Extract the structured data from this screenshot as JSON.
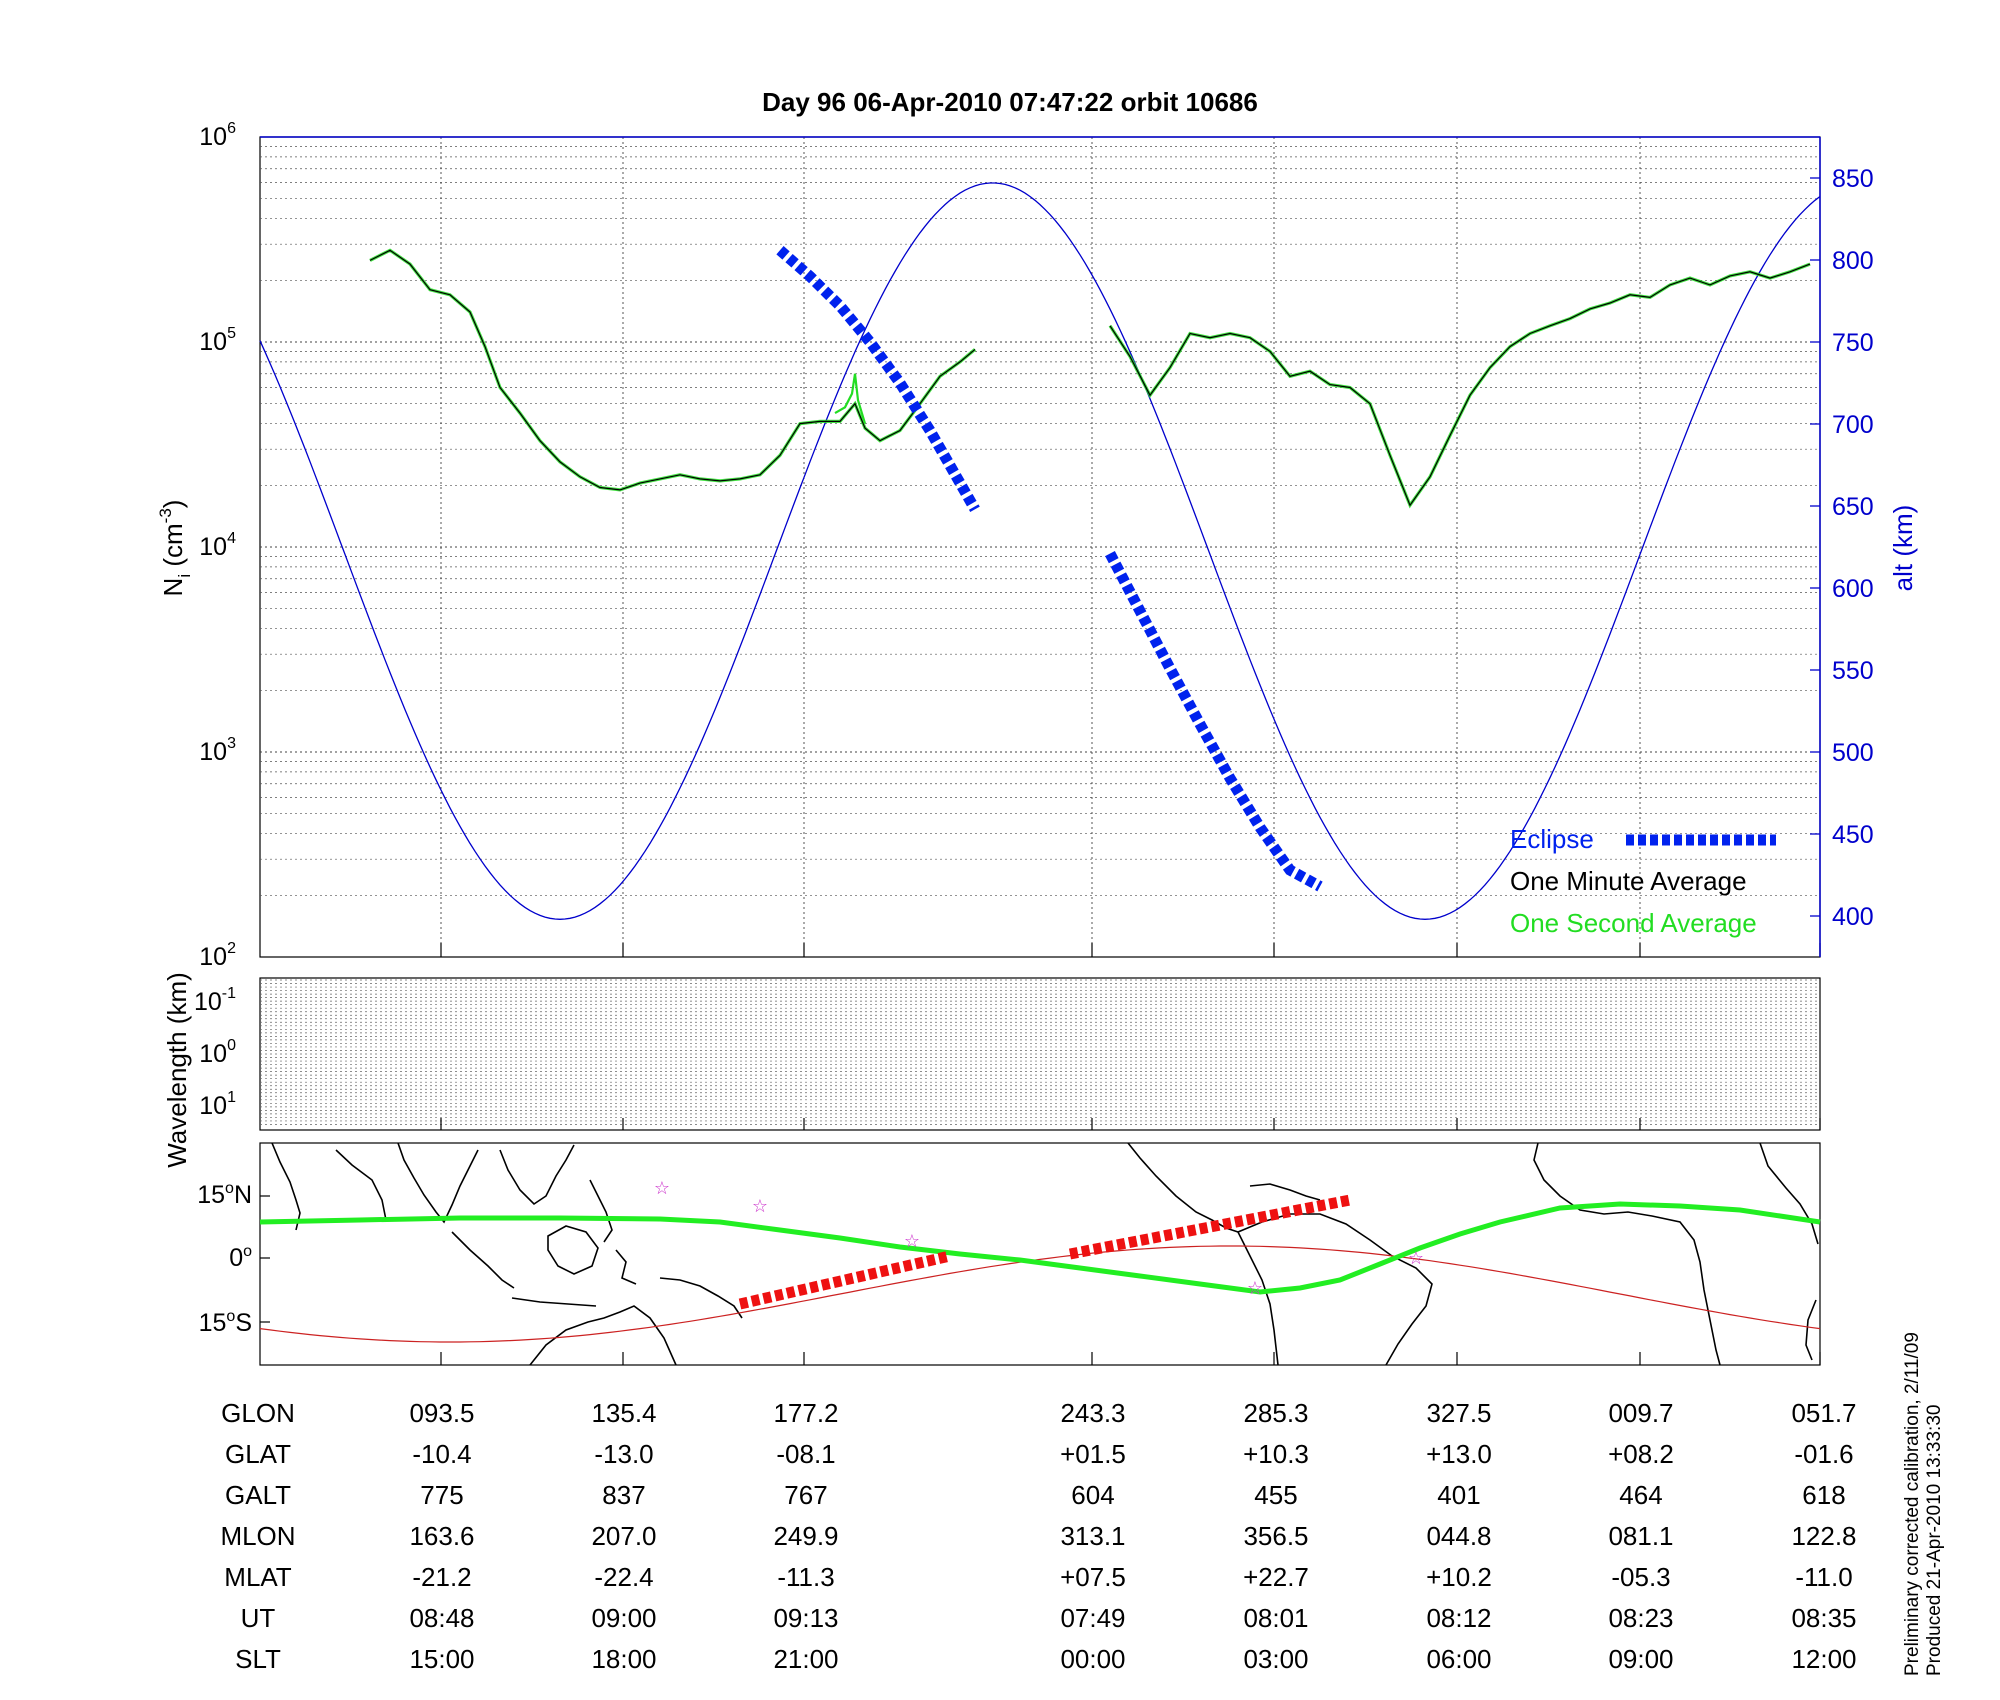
{
  "title": "Day 96  06-Apr-2010 07:47:22   orbit 10686",
  "panels": {
    "density": {
      "ylabel_main": "N",
      "ylabel_sub": "i",
      "ylabel_unit": "(cm",
      "ylabel_exp": "-3",
      "ylabel_close": ")",
      "yticks_left": [
        {
          "base": "10",
          "exp": "6",
          "value": 1000000
        },
        {
          "base": "10",
          "exp": "5",
          "value": 100000
        },
        {
          "base": "10",
          "exp": "4",
          "value": 10000
        },
        {
          "base": "10",
          "exp": "3",
          "value": 1000
        },
        {
          "base": "10",
          "exp": "2",
          "value": 100
        }
      ],
      "ylabel_right": "alt (km)",
      "yticks_right": [
        "850",
        "800",
        "750",
        "700",
        "650",
        "600",
        "550",
        "500",
        "450",
        "400"
      ]
    },
    "wavelength": {
      "ylabel": "Wavelength (km)",
      "yticks": [
        {
          "base": "10",
          "exp": "-1"
        },
        {
          "base": "10",
          "exp": "0"
        },
        {
          "base": "10",
          "exp": "1"
        }
      ]
    },
    "map": {
      "yticks": [
        {
          "num": "15",
          "deg": "o",
          "hemi": "N"
        },
        {
          "num": "0",
          "deg": "o",
          "hemi": ""
        },
        {
          "num": "15",
          "deg": "o",
          "hemi": "S"
        }
      ]
    }
  },
  "legend": {
    "eclipse": "Eclipse",
    "one_minute": "One Minute Average",
    "one_second": "One Second Average",
    "placement": "lower-right"
  },
  "side_note": {
    "line1": "Preliminary corrected calibration, 2/11/09",
    "line2": "Produced 21-Apr-2010 13:33:30"
  },
  "colors": {
    "altitude": "#0000cc",
    "eclipse": "#0022ee",
    "one_minute": "#000000",
    "one_second": "#22dd22",
    "ground_track": "#22ee22",
    "magnetic_equator": "#cc2222",
    "eclipse_track": "#ee1111",
    "stars": "#cc33cc"
  },
  "table": {
    "rows": [
      {
        "label": "GLON",
        "values": [
          "093.5",
          "135.4",
          "177.2",
          "243.3",
          "285.3",
          "327.5",
          "009.7",
          "051.7"
        ]
      },
      {
        "label": "GLAT",
        "values": [
          "-10.4",
          "-13.0",
          "-08.1",
          "+01.5",
          "+10.3",
          "+13.0",
          "+08.2",
          "-01.6"
        ]
      },
      {
        "label": "GALT",
        "values": [
          "775",
          "837",
          "767",
          "604",
          "455",
          "401",
          "464",
          "618"
        ]
      },
      {
        "label": "MLON",
        "values": [
          "163.6",
          "207.0",
          "249.9",
          "313.1",
          "356.5",
          "044.8",
          "081.1",
          "122.8"
        ]
      },
      {
        "label": "MLAT",
        "values": [
          "-21.2",
          "-22.4",
          "-11.3",
          "+07.5",
          "+22.7",
          "+10.2",
          "-05.3",
          "-11.0"
        ]
      },
      {
        "label": "UT",
        "values": [
          "08:48",
          "09:00",
          "09:13",
          "07:49",
          "08:01",
          "08:12",
          "08:23",
          "08:35"
        ]
      },
      {
        "label": "SLT",
        "values": [
          "15:00",
          "18:00",
          "21:00",
          "00:00",
          "03:00",
          "06:00",
          "09:00",
          "12:00"
        ]
      }
    ]
  },
  "chart_data": {
    "type": "line",
    "title": "Day 96  06-Apr-2010 07:47:22   orbit 10686",
    "x_ticks_ut": [
      "08:48",
      "09:00",
      "09:13",
      "07:49",
      "08:01",
      "08:12",
      "08:23",
      "08:35"
    ],
    "x_ticks_slt": [
      "15:00",
      "18:00",
      "21:00",
      "00:00",
      "03:00",
      "06:00",
      "09:00",
      "12:00"
    ],
    "ylim_left_log": [
      100,
      1000000
    ],
    "ylim_right": [
      375,
      875
    ],
    "grid": true,
    "series": [
      {
        "name": "One Minute Average",
        "axis": "left",
        "segments": [
          [
            [
              11.0,
              250000
            ],
            [
              13.0,
              280000
            ],
            [
              15.0,
              240000
            ],
            [
              17.0,
              180000
            ],
            [
              19.0,
              170000
            ],
            [
              21.0,
              140000
            ],
            [
              22.5,
              95000
            ],
            [
              24.0,
              60000
            ],
            [
              26.0,
              45000
            ],
            [
              28.0,
              33000
            ],
            [
              30.0,
              26000
            ],
            [
              32.0,
              22000
            ],
            [
              34.0,
              19500
            ],
            [
              36.0,
              19000
            ],
            [
              38.0,
              20500
            ],
            [
              40.0,
              21500
            ],
            [
              42.0,
              22500
            ],
            [
              44.0,
              21500
            ],
            [
              46.0,
              21000
            ],
            [
              48.0,
              21500
            ],
            [
              50.0,
              22500
            ],
            [
              52.0,
              28000
            ],
            [
              54.0,
              40000
            ],
            [
              56.0,
              41000
            ],
            [
              58.0,
              41000
            ],
            [
              59.5,
              50000
            ],
            [
              60.5,
              38000
            ],
            [
              62.0,
              33000
            ],
            [
              64.0,
              37000
            ],
            [
              66.0,
              50000
            ],
            [
              68.0,
              68000
            ],
            [
              70.0,
              80000
            ],
            [
              71.5,
              92000
            ]
          ],
          [
            [
              85.0,
              120000
            ],
            [
              87.0,
              85000
            ],
            [
              89.0,
              55000
            ],
            [
              91.0,
              75000
            ],
            [
              93.0,
              110000
            ],
            [
              95.0,
              105000
            ],
            [
              97.0,
              110000
            ],
            [
              99.0,
              105000
            ],
            [
              101.0,
              90000
            ],
            [
              103.0,
              68000
            ],
            [
              105.0,
              72000
            ],
            [
              107.0,
              62000
            ],
            [
              109.0,
              60000
            ],
            [
              111.0,
              50000
            ],
            [
              113.0,
              28000
            ],
            [
              115.0,
              16000
            ],
            [
              117.0,
              22000
            ],
            [
              119.0,
              35000
            ],
            [
              121.0,
              55000
            ],
            [
              123.0,
              75000
            ],
            [
              125.0,
              95000
            ],
            [
              127.0,
              110000
            ],
            [
              129.0,
              120000
            ],
            [
              131.0,
              130000
            ],
            [
              133.0,
              145000
            ],
            [
              135.0,
              155000
            ],
            [
              137.0,
              170000
            ],
            [
              139.0,
              165000
            ],
            [
              141.0,
              190000
            ],
            [
              143.0,
              205000
            ],
            [
              145.0,
              190000
            ],
            [
              147.0,
              210000
            ],
            [
              149.0,
              220000
            ],
            [
              151.0,
              205000
            ],
            [
              153.0,
              220000
            ],
            [
              155.0,
              240000
            ]
          ]
        ]
      },
      {
        "name": "One Second Average",
        "axis": "left",
        "note": "overlaps One Minute Average; visible spike near x=59.5",
        "segments": [
          [
            [
              57.5,
              45000
            ],
            [
              58.5,
              48000
            ],
            [
              59.2,
              56000
            ],
            [
              59.5,
              70000
            ],
            [
              59.8,
              52000
            ],
            [
              60.5,
              40000
            ]
          ]
        ]
      },
      {
        "name": "Eclipse",
        "axis": "right",
        "segments": [
          [
            [
              52.0,
              806
            ],
            [
              55.0,
              790
            ],
            [
              58.0,
              772
            ],
            [
              61.0,
              750
            ],
            [
              64.0,
              725
            ],
            [
              67.0,
              696
            ],
            [
              70.0,
              664
            ],
            [
              71.5,
              648
            ]
          ],
          [
            [
              85.0,
              621
            ],
            [
              88.0,
              586
            ],
            [
              91.0,
              551
            ],
            [
              94.0,
              517
            ],
            [
              97.0,
              484
            ],
            [
              100.0,
              454
            ],
            [
              103.0,
              428
            ],
            [
              106.0,
              418
            ]
          ]
        ]
      },
      {
        "name": "alt (km)",
        "axis": "right",
        "orbit": {
          "period": 86.5,
          "x_min": 116.5,
          "alt_min": 398,
          "alt_max": 847
        }
      }
    ]
  }
}
